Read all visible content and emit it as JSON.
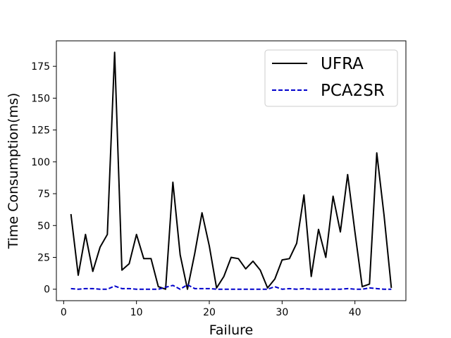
{
  "chart_data": {
    "type": "line",
    "title": "",
    "xlabel": "Failure",
    "ylabel": "Time Consumption(ms)",
    "xlim": [
      -1,
      47
    ],
    "ylim": [
      -9,
      195
    ],
    "xticks": [
      0,
      10,
      20,
      30,
      40
    ],
    "yticks": [
      0,
      25,
      50,
      75,
      100,
      125,
      150,
      175
    ],
    "grid": false,
    "legend_position": "top-right",
    "x": [
      1,
      2,
      3,
      4,
      5,
      6,
      7,
      8,
      9,
      10,
      11,
      12,
      13,
      14,
      15,
      16,
      17,
      18,
      19,
      20,
      21,
      22,
      23,
      24,
      25,
      26,
      27,
      28,
      29,
      30,
      31,
      32,
      33,
      34,
      35,
      36,
      37,
      38,
      39,
      40,
      41,
      42,
      43,
      44,
      45
    ],
    "series": [
      {
        "name": "UFRA",
        "color": "#000000",
        "style": "solid",
        "values": [
          59,
          11,
          43,
          14,
          33,
          43,
          186,
          15,
          20,
          43,
          24,
          24,
          2,
          0,
          84,
          27,
          0,
          28,
          60,
          34,
          1,
          10,
          25,
          24,
          16,
          22,
          15,
          1,
          8,
          23,
          24,
          36,
          74,
          10,
          47,
          25,
          73,
          45,
          90,
          45,
          2,
          4,
          107,
          58,
          1
        ]
      },
      {
        "name": "PCA2SR",
        "color": "#0000cc",
        "style": "dashed",
        "values": [
          0.5,
          0,
          0.5,
          0.5,
          0,
          0,
          2.5,
          0.5,
          0.5,
          0,
          0,
          0,
          0,
          1.5,
          3,
          0,
          3.5,
          0.5,
          0.5,
          0.5,
          0,
          0,
          0,
          0,
          0,
          0,
          0,
          0,
          2,
          0,
          0.5,
          0,
          0.5,
          0,
          0,
          0,
          0,
          0,
          0.5,
          0,
          0,
          1,
          0.5,
          0,
          0
        ]
      }
    ]
  }
}
